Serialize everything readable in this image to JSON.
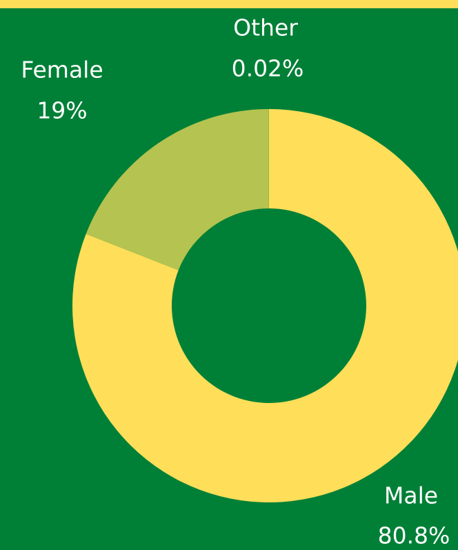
{
  "chart_data": {
    "type": "pie",
    "categories": [
      "Male",
      "Female",
      "Other"
    ],
    "values": [
      80.8,
      19,
      0.02
    ],
    "value_labels": [
      "80.8%",
      "19%",
      "0.02%"
    ],
    "colors": [
      "#ffde59",
      "#b5c350",
      "#8fbf4a"
    ],
    "donut": true
  }
}
